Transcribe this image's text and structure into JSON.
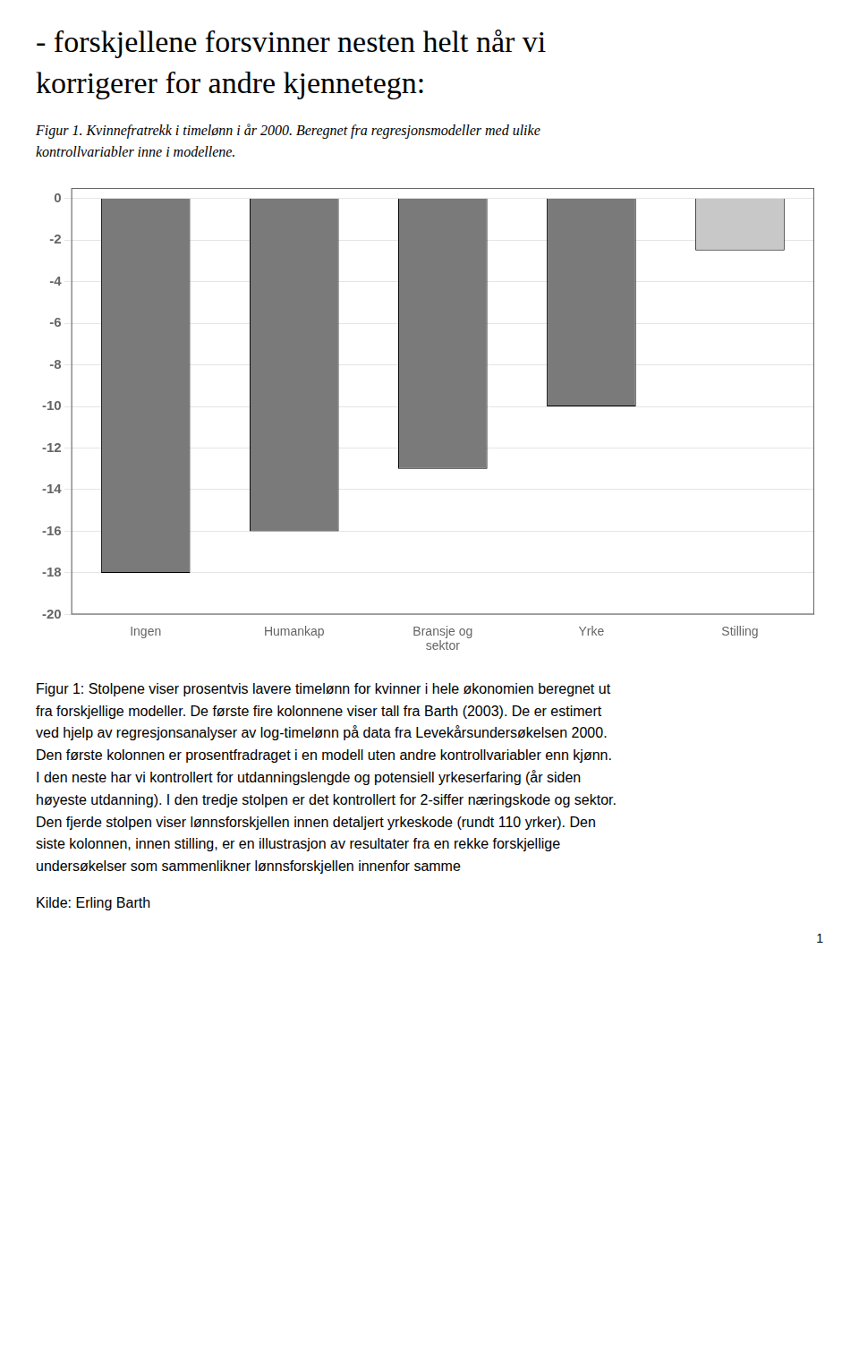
{
  "chart_data": {
    "type": "bar",
    "title": [
      "- forskjellene forsvinner nesten helt når vi",
      "korrigerer for andre kjennetegn:"
    ],
    "subtitle": [
      "Figur 1. Kvinnefratrekk i timelønn i år 2000. Beregnet fra regresjonsmodeller med ulike",
      "kontrollvariabler inne i modellene."
    ],
    "categories": [
      "Ingen",
      "Humankap",
      "Bransje og\nsektor",
      "Yrke",
      "Stilling"
    ],
    "values": [
      -18.0,
      -16.0,
      -13.0,
      -10.0,
      -2.5
    ],
    "colors": [
      "#7a7a7a",
      "#7a7a7a",
      "#7a7a7a",
      "#7a7a7a",
      "#c8c8c8"
    ],
    "ylim": [
      -20,
      0.5
    ],
    "yticks": [
      0,
      -2,
      -4,
      -6,
      -8,
      -10,
      -12,
      -14,
      -16,
      -18,
      -20
    ],
    "grid": true,
    "annotations": [
      [
        "Figur 1: Stolpene viser prosentvis lavere timelønn for kvinner i hele økonomien beregnet ut",
        "fra forskjellige modeller. De første fire kolonnene viser tall fra Barth (2003). De er estimert",
        "ved hjelp av regresjonsanalyser av log-timelønn på data fra Levekårsundersøkelsen 2000.",
        "Den første kolonnen er prosentfradraget i en modell uten andre kontrollvariabler enn kjønn.",
        "I den neste har vi kontrollert for utdanningslengde og potensiell yrkeserfaring (år siden",
        "høyeste utdanning). I den tredje stolpen er det kontrollert for 2-siffer næringskode og sektor.",
        "Den fjerde stolpen viser lønnsforskjellen innen detaljert yrkeskode (rundt 110 yrker). Den",
        "siste kolonnen, innen stilling, er en illustrasjon av resultater fra en rekke forskjellige",
        "undersøkelser som sammenlikner lønnsforskjellen innenfor samme"
      ],
      "Kilde: Erling Barth",
      "1"
    ]
  }
}
